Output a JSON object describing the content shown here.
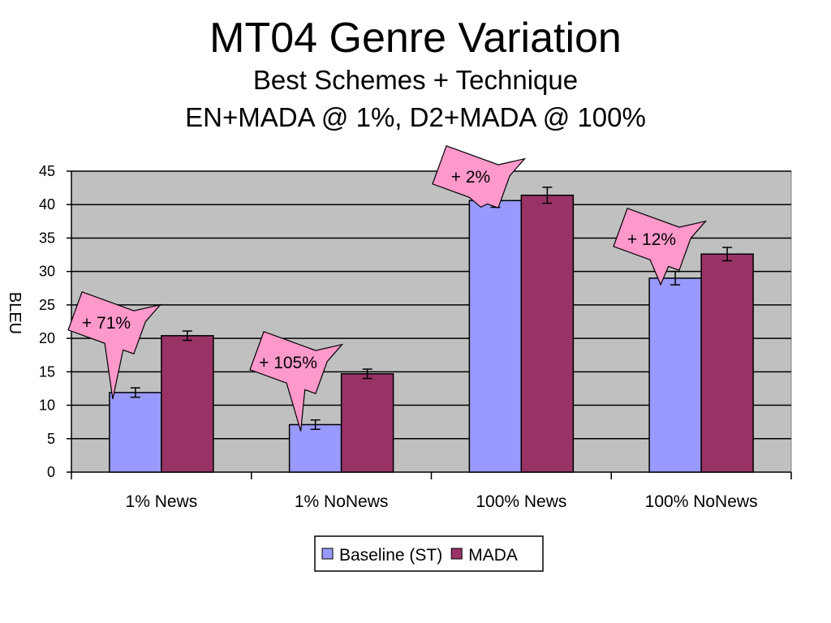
{
  "chart_data": {
    "type": "bar",
    "title": "MT04 Genre Variation",
    "subtitle_lines": [
      "Best Schemes + Technique",
      "EN+MADA @ 1%, D2+MADA @ 100%"
    ],
    "xlabel": "",
    "ylabel": "BLEU",
    "ylim": [
      0,
      45
    ],
    "yticks": [
      0,
      5,
      10,
      15,
      20,
      25,
      30,
      35,
      40,
      45
    ],
    "grid": true,
    "legend_position": "bottom",
    "categories": [
      "1% News",
      "1% NoNews",
      "100% News",
      "100% NoNews"
    ],
    "series": [
      {
        "name": "Baseline (ST)",
        "color": "#9999ff",
        "values": [
          11.9,
          7.1,
          40.6,
          29.0
        ],
        "error": [
          0.7,
          0.7,
          1.0,
          1.0
        ]
      },
      {
        "name": "MADA",
        "color": "#993366",
        "values": [
          20.4,
          14.7,
          41.4,
          32.6
        ],
        "error": [
          0.7,
          0.7,
          1.2,
          1.0
        ]
      }
    ],
    "annotations": [
      "+ 71%",
      "+ 105%",
      "+ 2%",
      "+ 12%"
    ],
    "plot_background": "#c0c0c0",
    "callout_color": "#ff99cc"
  }
}
